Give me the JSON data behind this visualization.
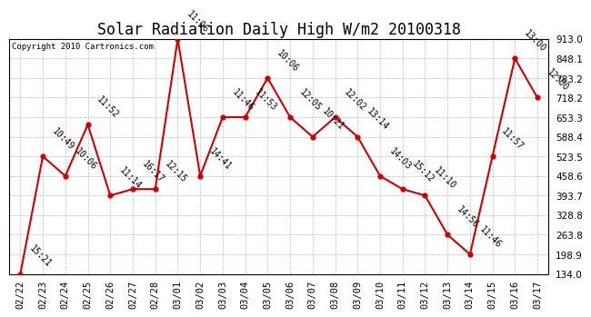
{
  "title": "Solar Radiation Daily High W/m2 20100318",
  "copyright": "Copyright 2010 Cartronics.com",
  "dates": [
    "02/22",
    "02/23",
    "02/24",
    "02/25",
    "02/26",
    "02/27",
    "02/28",
    "03/01",
    "03/02",
    "03/03",
    "03/04",
    "03/05",
    "03/06",
    "03/07",
    "03/08",
    "03/09",
    "03/10",
    "03/11",
    "03/12",
    "03/13",
    "03/14",
    "03/15",
    "03/16",
    "03/17"
  ],
  "values": [
    134.0,
    523.5,
    458.6,
    628.5,
    393.7,
    415.0,
    415.0,
    913.0,
    458.6,
    653.3,
    653.3,
    783.2,
    653.3,
    588.4,
    653.3,
    588.4,
    458.6,
    415.0,
    393.7,
    263.8,
    198.9,
    523.5,
    848.1,
    718.2
  ],
  "labels": [
    "15:21",
    "10:49",
    "10:06",
    "11:52",
    "11:14",
    "16:17",
    "12:15",
    "11:06",
    "14:41",
    "11:46",
    "11:53",
    "10:06",
    "12:05",
    "10:21",
    "12:02",
    "13:14",
    "14:03",
    "15:12",
    "11:10",
    "14:56",
    "11:46",
    "11:57",
    "13:00",
    "12:00"
  ],
  "ylim": [
    134.0,
    913.0
  ],
  "yticks": [
    134.0,
    198.9,
    263.8,
    328.8,
    393.7,
    458.6,
    523.5,
    588.4,
    653.3,
    718.2,
    783.2,
    848.1,
    913.0
  ],
  "line_color": "#cc0000",
  "marker_color": "#cc0000",
  "bg_color": "#ffffff",
  "grid_color": "#bbbbbb",
  "title_fontsize": 12,
  "label_fontsize": 7,
  "tick_fontsize": 7.5,
  "copyright_fontsize": 6.5
}
